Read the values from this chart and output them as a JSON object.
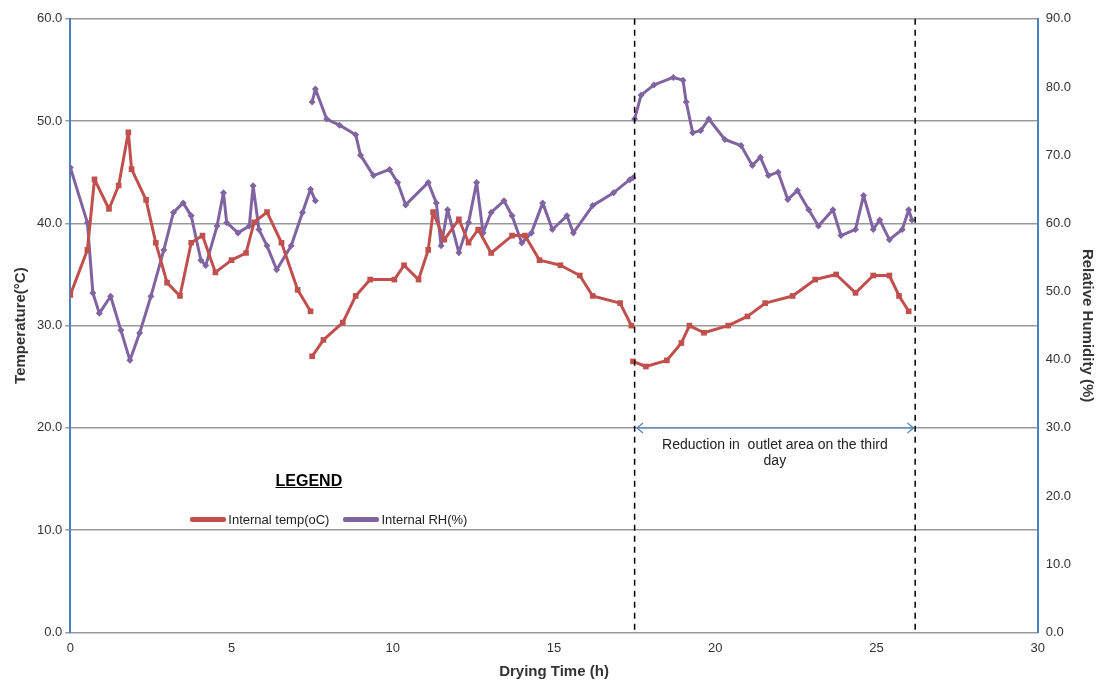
{
  "chart_data": {
    "type": "line",
    "xlabel": "Drying Time (h)",
    "ylabel": "Temperature(°C)",
    "y2label": "Relative Humidity (%)",
    "xlim": [
      0,
      30
    ],
    "xticks": [
      0,
      5,
      10,
      15,
      20,
      25,
      30
    ],
    "ylim": [
      0,
      60
    ],
    "yticks": [
      {
        "value": 0,
        "label": "0.0"
      },
      {
        "value": 10,
        "label": "10.0"
      },
      {
        "value": 20,
        "label": "20.0"
      },
      {
        "value": 30,
        "label": "30.0"
      },
      {
        "value": 40,
        "label": "40.0"
      },
      {
        "value": 50,
        "label": "50.0"
      },
      {
        "value": 60,
        "label": "60.0"
      }
    ],
    "y2lim": [
      0,
      90
    ],
    "y2ticks": [
      {
        "value": 0,
        "label": "0.0"
      },
      {
        "value": 10,
        "label": "10.0"
      },
      {
        "value": 20,
        "label": "20.0"
      },
      {
        "value": 30,
        "label": "30.0"
      },
      {
        "value": 40,
        "label": "40.0"
      },
      {
        "value": 50,
        "label": "50.0"
      },
      {
        "value": 60,
        "label": "60.0"
      },
      {
        "value": 70,
        "label": "70.0"
      },
      {
        "value": 80,
        "label": "80.0"
      },
      {
        "value": 90,
        "label": "90.0"
      }
    ],
    "grid": "y",
    "legend": "bottom left",
    "legend_title": "LEGEND",
    "series": [
      {
        "name": "Internal temp(oC)",
        "color": "#c0504d",
        "marker": "square",
        "x": [
          0,
          0.53,
          0.75,
          1.2,
          1.5,
          1.8,
          1.9,
          2.35,
          2.65,
          3.0,
          3.4,
          3.75,
          4.1,
          4.5,
          5.0,
          5.45,
          5.7,
          6.1,
          6.55,
          7.05,
          7.45,
          null,
          7.5,
          7.85,
          8.45,
          8.85,
          9.3,
          10.05,
          10.35,
          10.8,
          11.1,
          11.25,
          11.6,
          12.05,
          12.35,
          12.65,
          13.05,
          13.7,
          14.1,
          14.55,
          15.2,
          15.8,
          16.2,
          17.05,
          17.4,
          null,
          17.45,
          17.85,
          18.5,
          18.95,
          19.2,
          19.65,
          20.4,
          21.0,
          21.55,
          22.4,
          23.1,
          23.75,
          24.35,
          24.9,
          25.4,
          25.7,
          26.0
        ],
        "values": [
          33.0,
          37.4,
          44.3,
          41.4,
          43.7,
          48.9,
          45.3,
          42.3,
          38.1,
          34.2,
          32.9,
          38.1,
          38.8,
          35.2,
          36.4,
          37.1,
          40.1,
          41.1,
          38.1,
          33.5,
          31.4,
          null,
          27.0,
          28.6,
          30.3,
          32.9,
          34.5,
          34.5,
          35.9,
          34.5,
          37.4,
          41.1,
          38.4,
          40.4,
          38.1,
          39.4,
          37.1,
          38.8,
          38.8,
          36.4,
          35.9,
          34.9,
          32.9,
          32.2,
          30.0,
          null,
          26.5,
          26.0,
          26.6,
          28.3,
          30.0,
          29.3,
          30.0,
          30.9,
          32.2,
          32.9,
          34.5,
          35.0,
          33.2,
          34.9,
          34.9,
          32.9,
          31.4
        ]
      },
      {
        "name": "Internal RH(%)",
        "color": "#8064a2",
        "marker": "diamond",
        "axis": "y2",
        "x": [
          0,
          0.53,
          0.7,
          0.9,
          1.25,
          1.57,
          1.85,
          2.15,
          2.5,
          2.9,
          3.2,
          3.5,
          3.75,
          4.05,
          4.2,
          4.55,
          4.75,
          4.85,
          5.2,
          5.55,
          5.67,
          5.85,
          6.1,
          6.4,
          6.85,
          7.2,
          7.45,
          7.6,
          null,
          7.5,
          7.6,
          7.95,
          8.35,
          8.85,
          9.0,
          9.4,
          9.9,
          10.15,
          10.4,
          11.1,
          11.35,
          11.5,
          11.7,
          12.05,
          12.35,
          12.6,
          12.8,
          13.05,
          13.45,
          13.7,
          14.0,
          14.3,
          14.65,
          14.95,
          15.4,
          15.6,
          16.2,
          16.85,
          17.35,
          17.45,
          null,
          17.5,
          17.7,
          18.1,
          18.7,
          19.0,
          19.1,
          19.3,
          19.55,
          19.8,
          20.3,
          20.8,
          21.15,
          21.4,
          21.65,
          21.95,
          22.25,
          22.55,
          22.9,
          23.2,
          23.65,
          23.9,
          24.35,
          24.6,
          24.9,
          25.1,
          25.4,
          25.8,
          26.0,
          26.1
        ],
        "values": [
          68.2,
          60.1,
          49.8,
          46.8,
          49.3,
          44.3,
          39.9,
          43.9,
          49.3,
          56.1,
          61.6,
          63.0,
          61.1,
          54.6,
          53.8,
          59.6,
          64.5,
          60.1,
          58.6,
          59.6,
          65.5,
          59.1,
          56.7,
          53.2,
          56.7,
          61.6,
          65.0,
          63.3,
          null,
          77.8,
          79.7,
          75.3,
          74.4,
          73.0,
          70.0,
          67.0,
          67.9,
          66.0,
          62.7,
          66.0,
          63.0,
          56.7,
          62.0,
          55.7,
          60.1,
          66.0,
          58.6,
          61.6,
          63.3,
          61.1,
          57.1,
          58.6,
          63.0,
          59.1,
          61.1,
          58.6,
          62.6,
          64.5,
          66.4,
          66.7,
          null,
          75.3,
          78.8,
          80.3,
          81.4,
          81.0,
          77.8,
          73.3,
          73.6,
          75.3,
          72.3,
          71.4,
          68.5,
          69.7,
          67.0,
          67.5,
          63.5,
          64.8,
          62.0,
          59.6,
          62.0,
          58.2,
          59.1,
          64.1,
          59.1,
          60.5,
          57.6,
          59.1,
          62.0,
          60.5
        ]
      }
    ],
    "ref_lines": [
      {
        "axis": "x",
        "value": 17.5,
        "color": "#000000",
        "line_style": "dashed"
      },
      {
        "axis": "x",
        "value": 26.2,
        "color": "#000000",
        "line_style": "dashed"
      }
    ],
    "annotations": [
      "Reduction in  outlet area on the third day"
    ]
  }
}
